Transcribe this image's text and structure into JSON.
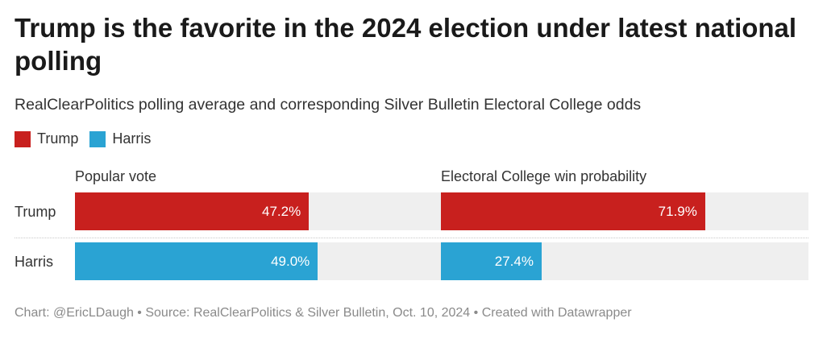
{
  "title": "Trump is the favorite in the 2024 election under latest national polling",
  "subtitle": "RealClearPolitics polling average and corresponding Silver Bulletin Electoral College odds",
  "footer": "Chart: @EricLDaugh • Source: RealClearPolitics & Silver Bulletin, Oct. 10, 2024 • Created with Datawrapper",
  "colors": {
    "trump": "#c8201e",
    "harris": "#2aa3d3",
    "track": "#efefef"
  },
  "chart_data": {
    "type": "bar",
    "orientation": "horizontal",
    "title": "Trump is the favorite in the 2024 election under latest national polling",
    "subtitle": "RealClearPolitics polling average and corresponding Silver Bulletin Electoral College odds",
    "legend": [
      "Trump",
      "Harris"
    ],
    "categories": [
      "Trump",
      "Harris"
    ],
    "panels": [
      {
        "name": "Popular vote",
        "xlim": [
          0,
          100
        ],
        "values": [
          47.2,
          49.0
        ],
        "labels": [
          "47.2%",
          "49.0%"
        ]
      },
      {
        "name": "Electoral College win probability",
        "xlim": [
          0,
          100
        ],
        "values": [
          71.9,
          27.4
        ],
        "labels": [
          "71.9%",
          "27.4%"
        ]
      }
    ]
  }
}
